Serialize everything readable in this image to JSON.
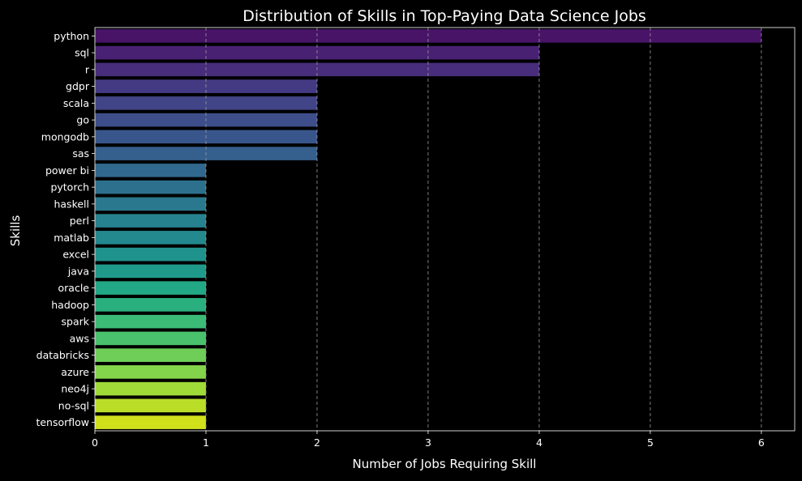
{
  "chart_data": {
    "type": "bar",
    "orientation": "horizontal",
    "title": "Distribution of Skills in Top-Paying Data Science Jobs",
    "xlabel": "Number of Jobs Requiring Skill",
    "ylabel": "Skills",
    "xlim": [
      0,
      6.3
    ],
    "x_ticks": [
      0,
      1,
      2,
      3,
      4,
      5,
      6
    ],
    "grid": "x-dashed",
    "colormap": "viridis",
    "categories": [
      "python",
      "sql",
      "r",
      "gdpr",
      "scala",
      "go",
      "mongodb",
      "sas",
      "power bi",
      "pytorch",
      "haskell",
      "perl",
      "matlab",
      "excel",
      "java",
      "oracle",
      "hadoop",
      "spark",
      "aws",
      "databricks",
      "azure",
      "neo4j",
      "no-sql",
      "tensorflow"
    ],
    "values": [
      6,
      4,
      4,
      2,
      2,
      2,
      2,
      2,
      1,
      1,
      1,
      1,
      1,
      1,
      1,
      1,
      1,
      1,
      1,
      1,
      1,
      1,
      1,
      1
    ],
    "colors": [
      "#481467",
      "#482173",
      "#472d7b",
      "#443a83",
      "#414487",
      "#3d4e8a",
      "#39568c",
      "#355f8d",
      "#31688e",
      "#2d708e",
      "#2a788e",
      "#26828e",
      "#23898e",
      "#20928c",
      "#1f9a8a",
      "#22a884",
      "#2ab07f",
      "#3bbb75",
      "#4ac16d",
      "#6ece58",
      "#84d44b",
      "#a0da39",
      "#bade28",
      "#d0e11c"
    ]
  }
}
